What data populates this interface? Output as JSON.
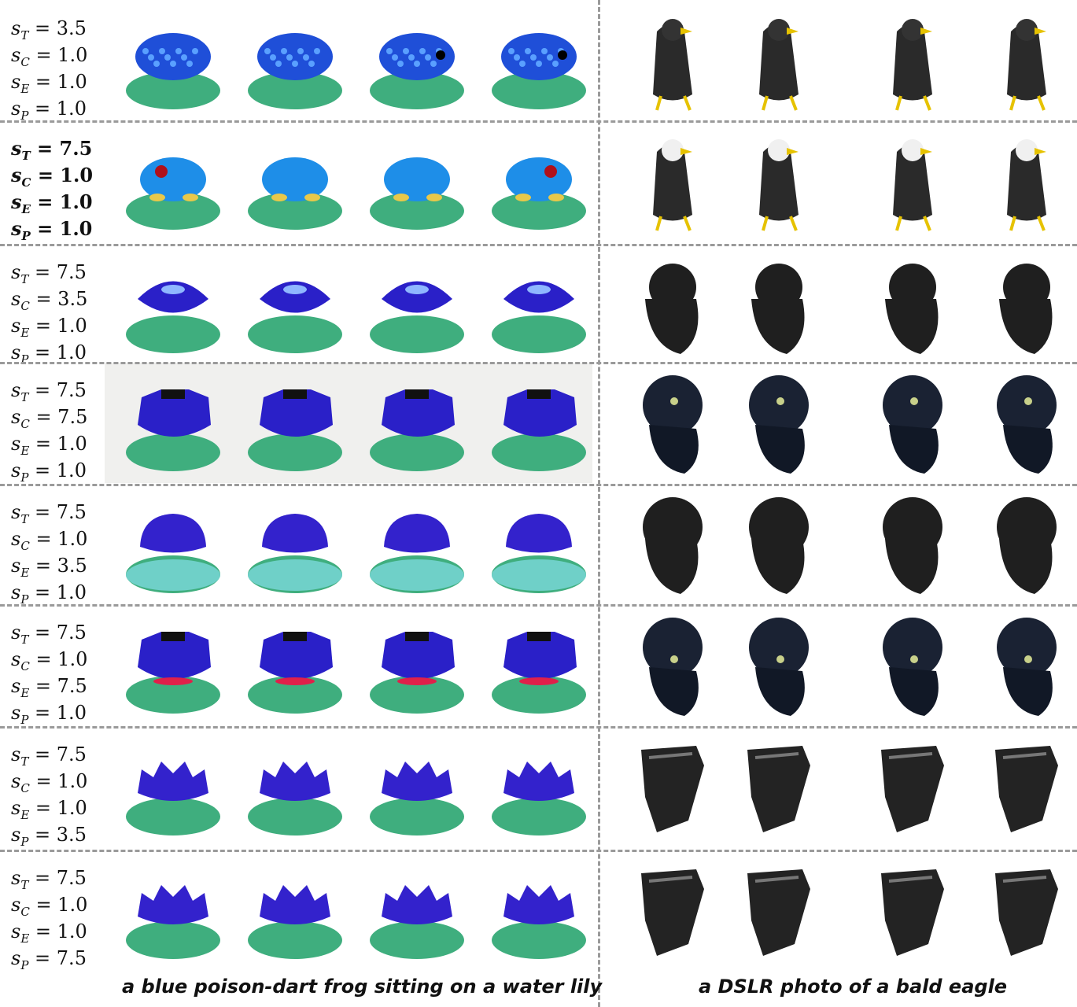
{
  "rows": [
    {
      "labels": [
        {
          "sym": "s",
          "sub": "T",
          "val": "= 3.5"
        },
        {
          "sym": "s",
          "sub": "C",
          "val": "= 1.0"
        },
        {
          "sym": "s",
          "sub": "E",
          "val": "= 1.0"
        },
        {
          "sym": "s",
          "sub": "P",
          "val": "= 1.0"
        }
      ]
    },
    {
      "labels": [
        {
          "sym": "s",
          "sub": "T",
          "val": "= 7.5"
        },
        {
          "sym": "s",
          "sub": "C",
          "val": "= 1.0"
        },
        {
          "sym": "s",
          "sub": "E",
          "val": "= 1.0"
        },
        {
          "sym": "s",
          "sub": "P",
          "val": "= 1.0"
        }
      ]
    },
    {
      "labels": [
        {
          "sym": "s",
          "sub": "T",
          "val": "= 7.5"
        },
        {
          "sym": "s",
          "sub": "C",
          "val": "= 3.5"
        },
        {
          "sym": "s",
          "sub": "E",
          "val": "= 1.0"
        },
        {
          "sym": "s",
          "sub": "P",
          "val": "= 1.0"
        }
      ]
    },
    {
      "labels": [
        {
          "sym": "s",
          "sub": "T",
          "val": "= 7.5"
        },
        {
          "sym": "s",
          "sub": "C",
          "val": "= 7.5"
        },
        {
          "sym": "s",
          "sub": "E",
          "val": "= 1.0"
        },
        {
          "sym": "s",
          "sub": "P",
          "val": "= 1.0"
        }
      ]
    },
    {
      "labels": [
        {
          "sym": "s",
          "sub": "T",
          "val": "= 7.5"
        },
        {
          "sym": "s",
          "sub": "C",
          "val": "= 1.0"
        },
        {
          "sym": "s",
          "sub": "E",
          "val": "= 3.5"
        },
        {
          "sym": "s",
          "sub": "P",
          "val": "= 1.0"
        }
      ]
    },
    {
      "labels": [
        {
          "sym": "s",
          "sub": "T",
          "val": "= 7.5"
        },
        {
          "sym": "s",
          "sub": "C",
          "val": "= 1.0"
        },
        {
          "sym": "s",
          "sub": "E",
          "val": "= 7.5"
        },
        {
          "sym": "s",
          "sub": "P",
          "val": "= 1.0"
        }
      ]
    },
    {
      "labels": [
        {
          "sym": "s",
          "sub": "T",
          "val": "= 7.5"
        },
        {
          "sym": "s",
          "sub": "C",
          "val": "= 1.0"
        },
        {
          "sym": "s",
          "sub": "E",
          "val": "= 1.0"
        },
        {
          "sym": "s",
          "sub": "P",
          "val": "= 3.5"
        }
      ]
    },
    {
      "labels": [
        {
          "sym": "s",
          "sub": "T",
          "val": "= 7.5"
        },
        {
          "sym": "s",
          "sub": "C",
          "val": "= 1.0"
        },
        {
          "sym": "s",
          "sub": "E",
          "val": "= 1.0"
        },
        {
          "sym": "s",
          "sub": "P",
          "val": "= 7.5"
        }
      ]
    }
  ],
  "captions": {
    "left": "a blue poison-dart frog sitting on a water lily",
    "right": "a DSLR photo of a bald eagle"
  },
  "colors": {
    "frog": "#1f4fd8",
    "lily": "#3fae7e",
    "eagle": "#2a2a2a",
    "dash": "#9a9a9a"
  }
}
